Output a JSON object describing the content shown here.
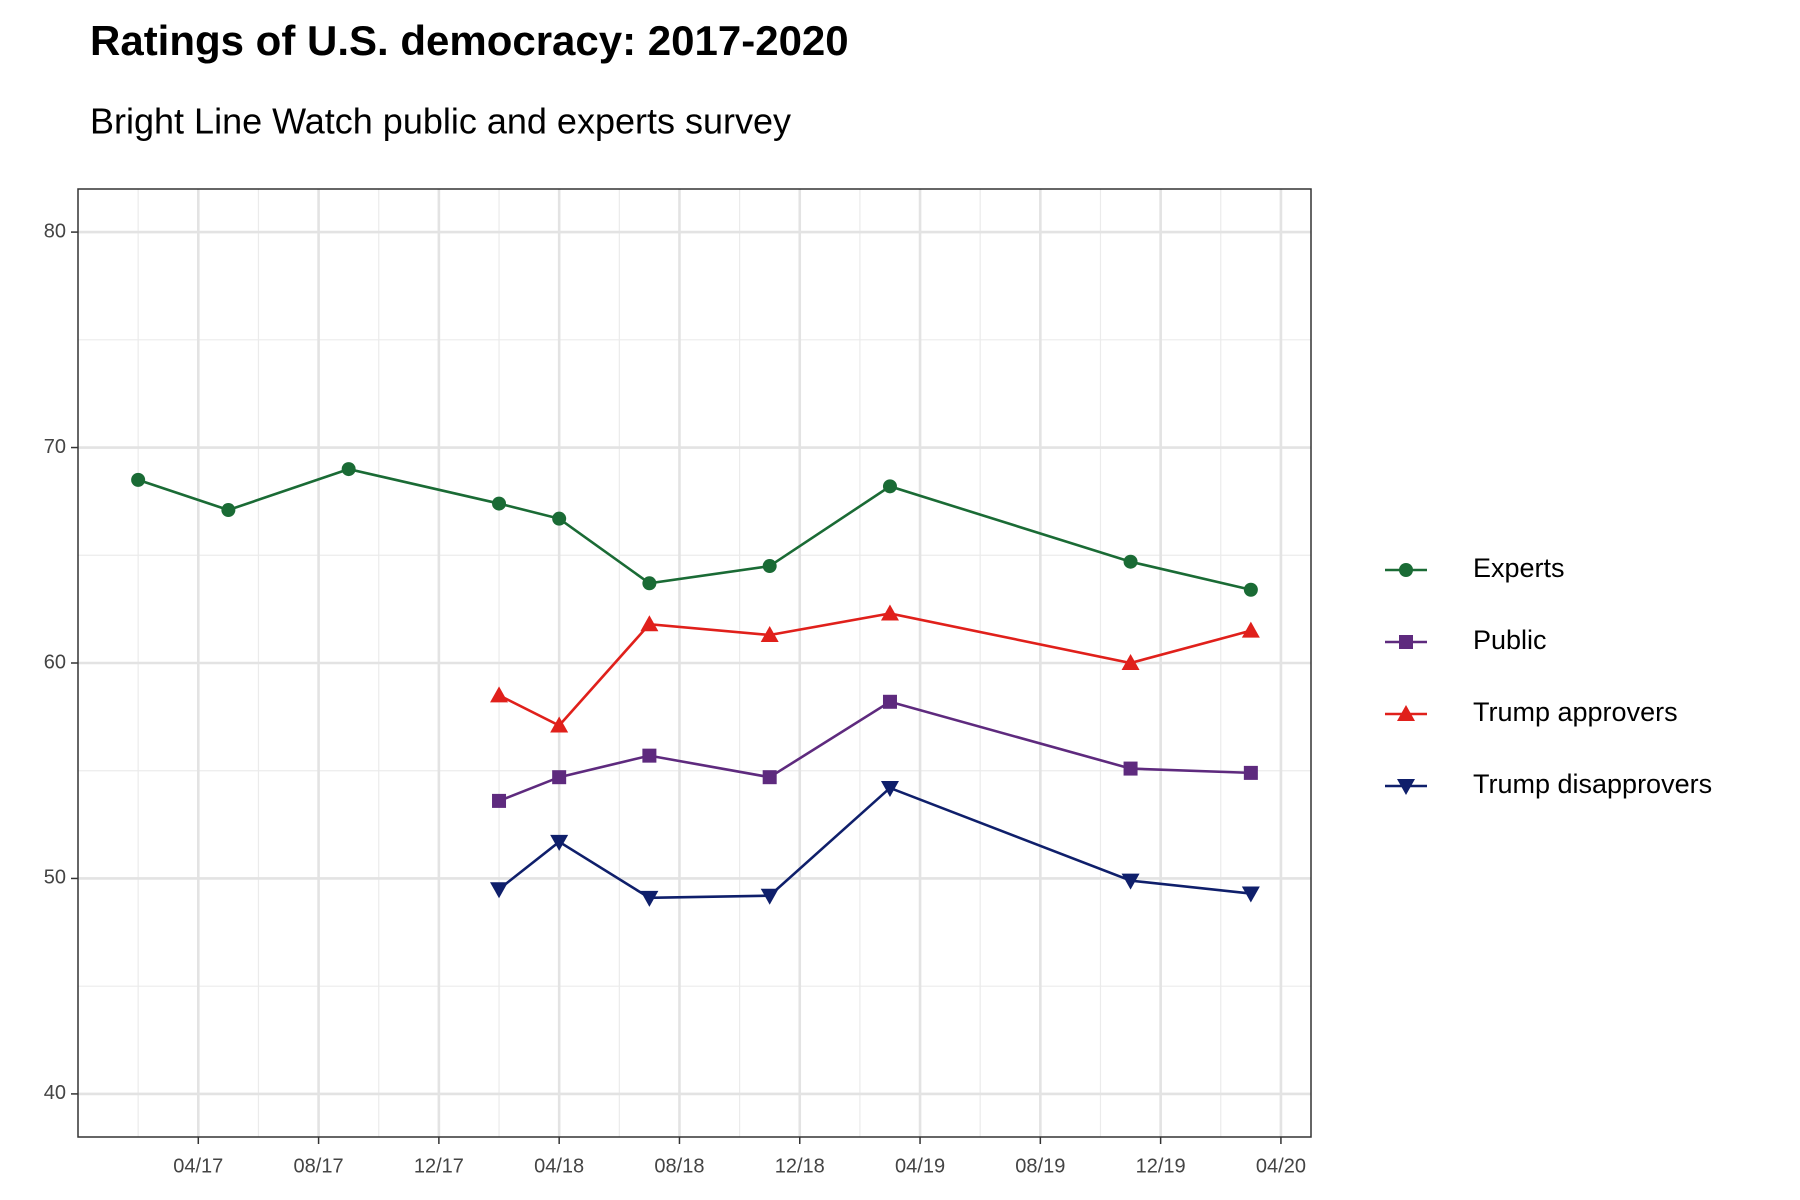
{
  "chart_data": {
    "type": "line",
    "title": "Ratings of U.S. democracy: 2017-2020",
    "subtitle": "Bright Line Watch public and experts survey",
    "x": [
      "2017-02",
      "2017-05",
      "2017-09",
      "2018-02",
      "2018-04",
      "2018-07",
      "2018-11",
      "2019-03",
      "2019-11",
      "2020-03"
    ],
    "series": [
      {
        "name": "Experts",
        "color": "#1a6b35",
        "marker": "circle",
        "values": [
          68.5,
          67.1,
          69.0,
          67.4,
          66.7,
          63.7,
          64.5,
          68.2,
          64.7,
          63.4
        ]
      },
      {
        "name": "Public",
        "color": "#5e2a7e",
        "marker": "square",
        "values": [
          null,
          null,
          null,
          53.6,
          54.7,
          55.7,
          54.7,
          58.2,
          55.1,
          54.9
        ]
      },
      {
        "name": "Trump approvers",
        "color": "#e0201b",
        "marker": "triangle-up",
        "values": [
          null,
          null,
          null,
          58.5,
          57.1,
          61.8,
          61.3,
          62.3,
          60.0,
          61.5
        ]
      },
      {
        "name": "Trump disapprovers",
        "color": "#0f1f6b",
        "marker": "triangle-down",
        "values": [
          null,
          null,
          null,
          49.5,
          51.7,
          49.1,
          49.2,
          54.2,
          49.9,
          49.3
        ]
      }
    ],
    "xlim": [
      "2016-12",
      "2020-05"
    ],
    "xticks": [
      {
        "value": "2017-04",
        "label": "04/17"
      },
      {
        "value": "2017-08",
        "label": "08/17"
      },
      {
        "value": "2017-12",
        "label": "12/17"
      },
      {
        "value": "2018-04",
        "label": "04/18"
      },
      {
        "value": "2018-08",
        "label": "08/18"
      },
      {
        "value": "2018-12",
        "label": "12/18"
      },
      {
        "value": "2019-04",
        "label": "04/19"
      },
      {
        "value": "2019-08",
        "label": "08/19"
      },
      {
        "value": "2019-12",
        "label": "12/19"
      },
      {
        "value": "2020-04",
        "label": "04/20"
      }
    ],
    "ylim": [
      38,
      82
    ],
    "yticks": [
      40,
      50,
      60,
      70,
      80
    ],
    "grid": true,
    "legend": "right"
  }
}
